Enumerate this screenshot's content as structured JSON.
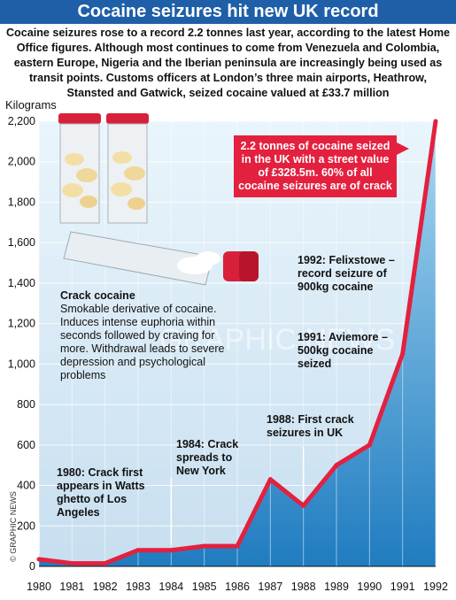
{
  "title": "Cocaine seizures hit new UK record",
  "intro": "Cocaine seizures rose to a record 2.2 tonnes last year, according to the latest Home Office figures. Although most continues to come from Venezuela and Colombia, eastern Europe, Nigeria and the Iberian peninsula are increasingly being used as transit points. Customs officers at London’s three main airports, Heathrow, Stansted and Gatwick, seized cocaine valued at £33.7 million",
  "source": "© GRAPHIC NEWS",
  "watermark": "GRAPHIC NEWS",
  "crack_info": {
    "heading": "Crack cocaine",
    "body": "Smokable derivative of cocaine. Induces intense euphoria within seconds followed by craving for more. Withdrawal leads to severe depression and psychological problems"
  },
  "callout": "2.2 tonnes of cocaine seized in the UK with a street value of £328.5m. 60% of all cocaine seizures are of crack",
  "colors": {
    "title_bg": "#1f5fa8",
    "area_top": "#a9d8f2",
    "area_bottom": "#1f7cc0",
    "line": "#e3213f"
  },
  "chart_data": {
    "type": "area",
    "ylabel": "Kilograms",
    "x": [
      1980,
      1981,
      1982,
      1983,
      1984,
      1985,
      1986,
      1987,
      1988,
      1989,
      1990,
      1991,
      1992
    ],
    "values": [
      35,
      15,
      15,
      80,
      80,
      100,
      100,
      430,
      300,
      500,
      600,
      1050,
      2200
    ],
    "ylim": [
      0,
      2200
    ],
    "yticks": [
      0,
      200,
      400,
      600,
      800,
      1000,
      1200,
      1400,
      1600,
      1800,
      2000,
      2200
    ],
    "ytick_labels": [
      "0",
      "200",
      "400",
      "600",
      "800",
      "1,000",
      "1,200",
      "1,400",
      "1,600",
      "1,800",
      "2,000",
      "2,200"
    ],
    "grid": true,
    "annotations": [
      {
        "text": "1980: Crack first appears in Watts ghetto of Los Angeles",
        "x": 1980,
        "y": 35
      },
      {
        "text": "1984: Crack spreads to New York",
        "x": 1984,
        "y": 80
      },
      {
        "text": "1988: First crack seizures in UK",
        "x": 1988,
        "y": 300
      },
      {
        "text": "1991: Aviemore – 500kg cocaine seized",
        "x": 1991,
        "y": 1050
      },
      {
        "text": "1992: Felixstowe – record seizure of 900kg cocaine",
        "x": 1992,
        "y": 2200
      }
    ]
  }
}
